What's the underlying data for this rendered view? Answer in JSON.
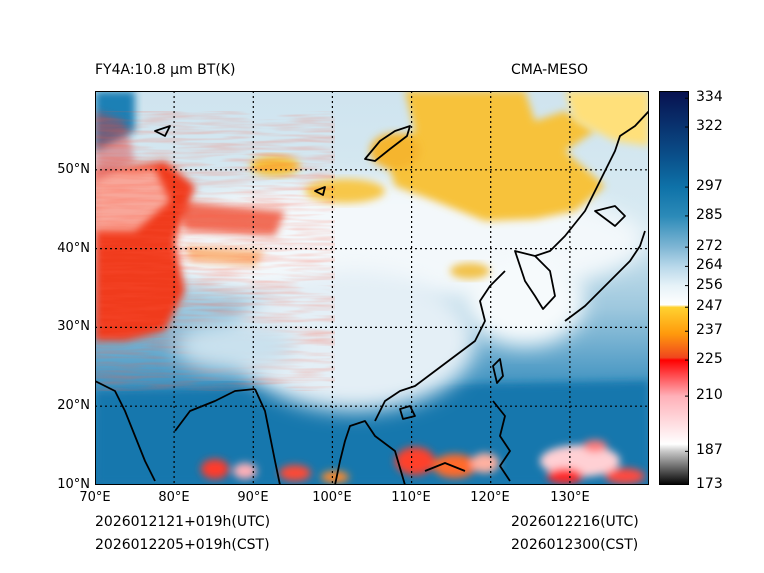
{
  "header": {
    "left_title": "FY4A:10.8 µm BT(K)",
    "right_title": "CMA-MESO"
  },
  "footer": {
    "init_utc": "2026012121+019h(UTC)",
    "init_cst": "2026012205+019h(CST)",
    "valid_utc": "2026012216(UTC)",
    "valid_cst": "2026012300(CST)"
  },
  "map": {
    "extent": {
      "lon_min": 70,
      "lon_max": 140,
      "lat_min": 10,
      "lat_max": 60
    },
    "lon_ticks": [
      {
        "value": 70,
        "label": "70°E"
      },
      {
        "value": 80,
        "label": "80°E"
      },
      {
        "value": 90,
        "label": "90°E"
      },
      {
        "value": 100,
        "label": "100°E"
      },
      {
        "value": 110,
        "label": "110°E"
      },
      {
        "value": 120,
        "label": "120°E"
      },
      {
        "value": 130,
        "label": "130°E"
      }
    ],
    "lat_ticks": [
      {
        "value": 10,
        "label": "10°N"
      },
      {
        "value": 20,
        "label": "20°N"
      },
      {
        "value": 30,
        "label": "30°N"
      },
      {
        "value": 40,
        "label": "40°N"
      },
      {
        "value": 50,
        "label": "50°N"
      }
    ],
    "grid_lon": [
      80,
      90,
      100,
      110,
      120,
      130
    ],
    "grid_lat": [
      20,
      30,
      40,
      50
    ]
  },
  "colorbar": {
    "min": 173,
    "max": 337,
    "ticks": [
      173,
      187,
      210,
      225,
      237,
      247,
      256,
      264,
      272,
      285,
      297,
      322,
      334
    ],
    "stops": [
      {
        "value": 173,
        "color": "#000000"
      },
      {
        "value": 187,
        "color": "#c8c8c8"
      },
      {
        "value": 190,
        "color": "#ffffff"
      },
      {
        "value": 210,
        "color": "#ffb0b8"
      },
      {
        "value": 225,
        "color": "#ff0000"
      },
      {
        "value": 226,
        "color": "#f0461e"
      },
      {
        "value": 236,
        "color": "#ff9a0c"
      },
      {
        "value": 247,
        "color": "#ffd230"
      },
      {
        "value": 248,
        "color": "#ffffff"
      },
      {
        "value": 256,
        "color": "#e6f2f8"
      },
      {
        "value": 264,
        "color": "#b8d8ea"
      },
      {
        "value": 272,
        "color": "#7fb6d4"
      },
      {
        "value": 285,
        "color": "#2b8ab8"
      },
      {
        "value": 297,
        "color": "#0e72a8"
      },
      {
        "value": 310,
        "color": "#0a4f8a"
      },
      {
        "value": 337,
        "color": "#08114f"
      }
    ]
  }
}
